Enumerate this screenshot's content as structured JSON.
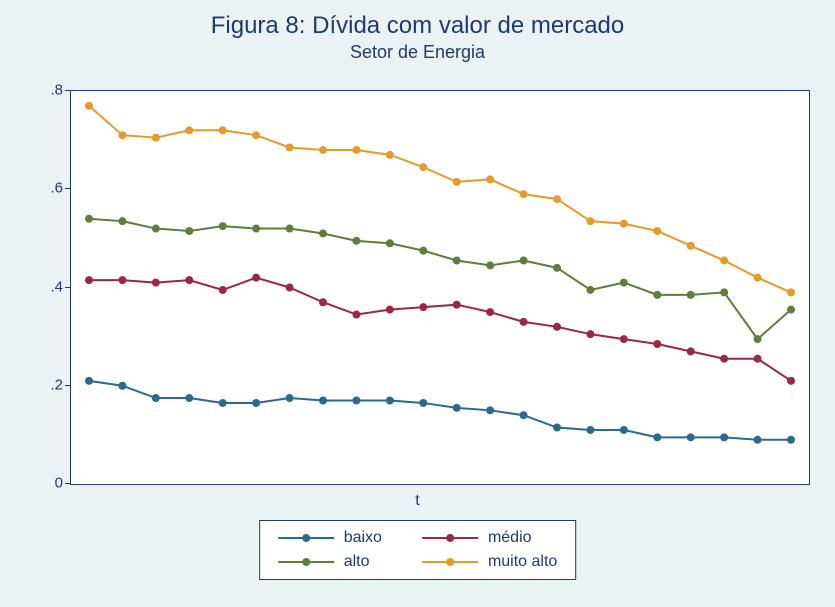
{
  "chart": {
    "type": "line",
    "title": "Figura 8: Dívida com valor de mercado",
    "title_fontsize": 24,
    "subtitle": "Setor de Energia",
    "subtitle_fontsize": 18,
    "xlabel": "t",
    "background_color": "#eaf2f3",
    "plot_background": "#ffffff",
    "border_color": "#1e3a6e",
    "text_color": "#1e3a6e",
    "ylim": [
      0,
      0.8
    ],
    "yticks": [
      0,
      0.2,
      0.4,
      0.6,
      0.8
    ],
    "ytick_labels": [
      "0",
      ".2",
      ".4",
      ".6",
      ".8"
    ],
    "n_points": 22,
    "marker_radius": 4,
    "line_width": 2,
    "series": [
      {
        "name": "baixo",
        "color": "#2a6a8c",
        "values": [
          0.21,
          0.2,
          0.175,
          0.175,
          0.165,
          0.165,
          0.175,
          0.17,
          0.17,
          0.17,
          0.165,
          0.155,
          0.15,
          0.14,
          0.115,
          0.11,
          0.11,
          0.095,
          0.095,
          0.095,
          0.09,
          0.09
        ]
      },
      {
        "name": "médio",
        "color": "#9b2743",
        "values": [
          0.415,
          0.415,
          0.41,
          0.415,
          0.395,
          0.42,
          0.4,
          0.37,
          0.345,
          0.355,
          0.36,
          0.365,
          0.35,
          0.33,
          0.32,
          0.305,
          0.295,
          0.285,
          0.27,
          0.255,
          0.255,
          0.21
        ]
      },
      {
        "name": "alto",
        "color": "#5e7e3a",
        "values": [
          0.54,
          0.535,
          0.52,
          0.515,
          0.525,
          0.52,
          0.52,
          0.51,
          0.495,
          0.49,
          0.475,
          0.455,
          0.445,
          0.455,
          0.44,
          0.395,
          0.41,
          0.385,
          0.385,
          0.39,
          0.295,
          0.355
        ]
      },
      {
        "name": "muito alto",
        "color": "#e69b29",
        "values": [
          0.77,
          0.71,
          0.705,
          0.72,
          0.72,
          0.71,
          0.685,
          0.68,
          0.68,
          0.67,
          0.645,
          0.615,
          0.62,
          0.59,
          0.58,
          0.535,
          0.53,
          0.515,
          0.485,
          0.455,
          0.42,
          0.39
        ]
      }
    ],
    "legend": {
      "position": "bottom",
      "columns": 2,
      "items": [
        "baixo",
        "médio",
        "alto",
        "muito alto"
      ]
    }
  }
}
